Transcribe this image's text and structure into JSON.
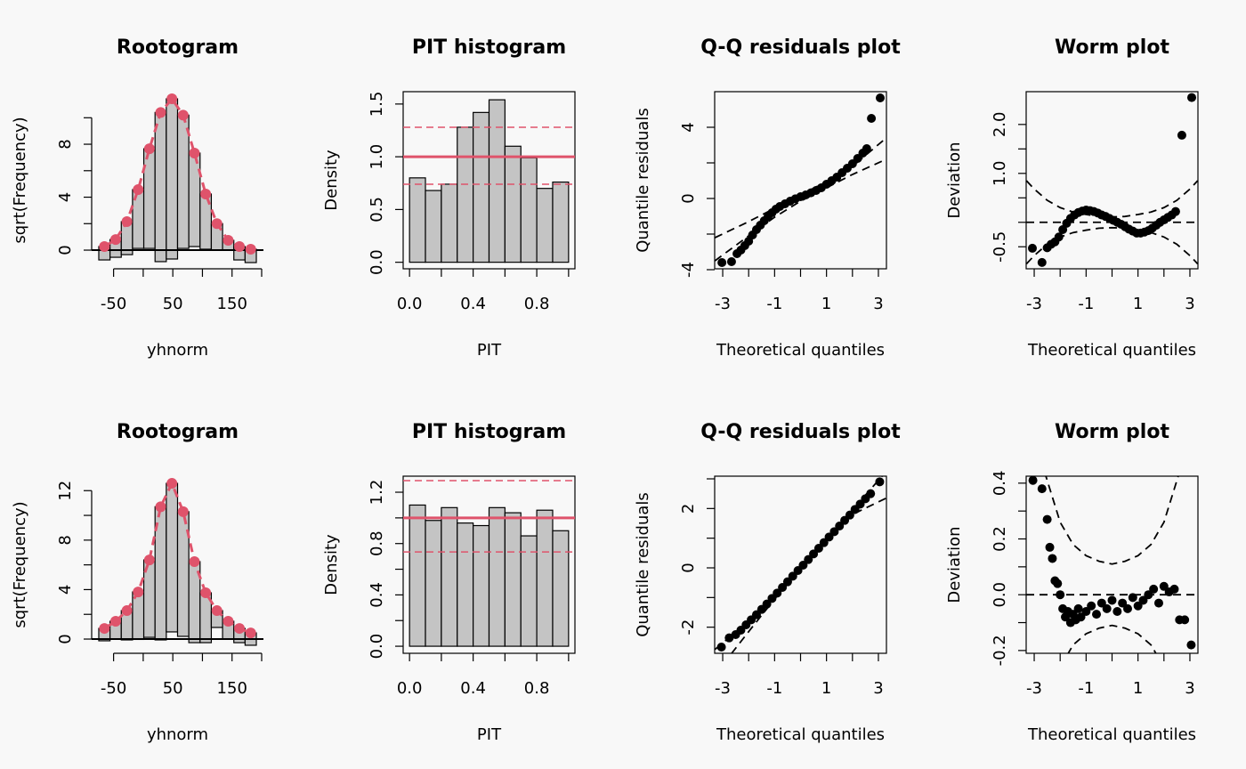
{
  "chart_data": [
    {
      "type": "rootogram",
      "title": "Rootogram",
      "xlabel": "yhnorm",
      "ylabel": "sqrt(Frequency)",
      "xlim": [
        -87,
        203
      ],
      "ylim": [
        -1.41,
        11.97
      ],
      "xticks": [
        -50,
        50,
        150
      ],
      "xticks_unlabeled": [
        0,
        100,
        200
      ],
      "yticks": [
        0,
        4,
        8
      ],
      "yticks_unlabeled": [
        2,
        6,
        10
      ],
      "bins": [
        -75,
        -56,
        -37,
        -18,
        1,
        20,
        39,
        58,
        77,
        96,
        115,
        134,
        153,
        172,
        191
      ],
      "expected": [
        0.27,
        0.8,
        2.15,
        4.57,
        7.66,
        10.4,
        11.43,
        10.2,
        7.33,
        4.24,
        2.0,
        0.74,
        0.27,
        0.07
      ],
      "observed": [
        1.01,
        1.34,
        2.49,
        4.44,
        7.53,
        11.27,
        12.1,
        10.07,
        7.06,
        4.17,
        2.0,
        0.74,
        1.01,
        1.01
      ],
      "reference_line": 0,
      "bar_color": "#c4c4c4",
      "line_color": "#df536b"
    },
    {
      "type": "histogram",
      "title": "PIT histogram",
      "xlabel": "PIT",
      "ylabel": "Density",
      "xlim": [
        -0.04,
        1.04
      ],
      "ylim": [
        -0.062,
        1.617
      ],
      "xticks": [
        {
          "value": 0,
          "label": "0.0"
        },
        0.4,
        0.8
      ],
      "xticks_unlabeled": [
        0.2,
        0.6,
        1
      ],
      "yticks": [
        {
          "value": 0,
          "label": "0.0"
        },
        0.5,
        {
          "value": 1,
          "label": "1.0"
        },
        1.5
      ],
      "yticks_unlabeled": [],
      "bins": [
        0,
        0.1,
        0.2,
        0.3,
        0.4,
        0.5,
        0.6,
        0.7,
        0.8,
        0.9,
        1
      ],
      "values": [
        0.8,
        0.68,
        0.74,
        1.28,
        1.42,
        1.54,
        1.1,
        0.99,
        0.7,
        0.76
      ],
      "reference_line": 1,
      "ci": [
        0.74,
        1.28
      ],
      "bar_color": "#c4c4c4",
      "line_color": "#df536b"
    },
    {
      "type": "qq",
      "title": "Q-Q residuals plot",
      "xlabel": "Theoretical quantiles",
      "ylabel": "Quantile residuals",
      "xlim": [
        -3.31,
        3.31
      ],
      "ylim": [
        -3.95,
        6.0
      ],
      "xticks": [
        -3,
        -1,
        1,
        3
      ],
      "xticks_unlabeled": [
        -2,
        0,
        2
      ],
      "yticks": [
        -4,
        0,
        4
      ],
      "yticks_unlabeled": [
        -2,
        2
      ],
      "x": [
        -3.03,
        -2.66,
        -2.45,
        -2.3,
        -2.15,
        -2.0,
        -1.85,
        -1.7,
        -1.55,
        -1.4,
        -1.25,
        -1.1,
        -0.95,
        -0.8,
        -0.6,
        -0.4,
        -0.2,
        0,
        0.2,
        0.4,
        0.6,
        0.8,
        1.0,
        1.2,
        1.4,
        1.6,
        1.8,
        2.0,
        2.2,
        2.4,
        2.55,
        2.73,
        3.07
      ],
      "y": [
        -3.6,
        -3.55,
        -3.1,
        -2.9,
        -2.65,
        -2.4,
        -2.05,
        -1.75,
        -1.5,
        -1.25,
        -1.0,
        -0.8,
        -0.6,
        -0.45,
        -0.3,
        -0.15,
        -0.02,
        0.1,
        0.2,
        0.32,
        0.45,
        0.6,
        0.8,
        1.0,
        1.2,
        1.45,
        1.7,
        1.95,
        2.25,
        2.55,
        2.8,
        4.5,
        5.65
      ],
      "band_x": [
        -3.3,
        -2,
        -1,
        0,
        1,
        2,
        3.3
      ],
      "band_upper": [
        -2.2,
        -1.3,
        -0.55,
        0.2,
        0.95,
        1.8,
        3.4
      ],
      "band_lower": [
        -3.5,
        -2.1,
        -1.05,
        -0.15,
        0.6,
        1.35,
        2.2
      ],
      "point_color": "#000000"
    },
    {
      "type": "worm",
      "title": "Worm plot",
      "xlabel": "Theoretical quantiles",
      "ylabel": "Deviation",
      "xlim": [
        -3.31,
        3.31
      ],
      "ylim": [
        -0.95,
        2.67
      ],
      "xticks": [
        -3,
        -1,
        1,
        3
      ],
      "xticks_unlabeled": [
        -2,
        0,
        2
      ],
      "yticks": [
        -0.5,
        {
          "value": 1,
          "label": "1.0"
        },
        {
          "value": 2,
          "label": "2.0"
        }
      ],
      "yticks_unlabeled": [
        0,
        0.5,
        1.5
      ],
      "x": [
        -3.07,
        -2.7,
        -2.5,
        -2.35,
        -2.2,
        -2.05,
        -1.9,
        -1.75,
        -1.6,
        -1.45,
        -1.3,
        -1.15,
        -1.0,
        -0.85,
        -0.7,
        -0.55,
        -0.4,
        -0.25,
        -0.1,
        0.05,
        0.2,
        0.35,
        0.5,
        0.65,
        0.8,
        0.95,
        1.1,
        1.25,
        1.4,
        1.55,
        1.7,
        1.85,
        2.0,
        2.15,
        2.3,
        2.45,
        2.69,
        3.07
      ],
      "y": [
        -0.53,
        -0.82,
        -0.52,
        -0.45,
        -0.4,
        -0.3,
        -0.15,
        -0.02,
        0.08,
        0.15,
        0.2,
        0.23,
        0.25,
        0.24,
        0.22,
        0.19,
        0.15,
        0.12,
        0.08,
        0.04,
        0.0,
        -0.04,
        -0.09,
        -0.14,
        -0.18,
        -0.22,
        -0.22,
        -0.2,
        -0.17,
        -0.12,
        -0.06,
        0.0,
        0.05,
        0.1,
        0.15,
        0.22,
        1.78,
        2.55
      ],
      "band_x": [
        -3.3,
        -3,
        -2.5,
        -2,
        -1.5,
        -1,
        -0.5,
        0,
        0.5,
        1,
        1.5,
        2,
        2.5,
        3,
        3.3
      ],
      "band_upper": [
        0.85,
        0.68,
        0.45,
        0.3,
        0.21,
        0.16,
        0.12,
        0.11,
        0.12,
        0.16,
        0.21,
        0.3,
        0.45,
        0.68,
        0.85
      ],
      "band_lower": [
        -0.85,
        -0.68,
        -0.45,
        -0.3,
        -0.21,
        -0.16,
        -0.12,
        -0.11,
        -0.12,
        -0.16,
        -0.21,
        -0.3,
        -0.45,
        -0.68,
        -0.85
      ],
      "hline": 0,
      "point_color": "#000000"
    },
    {
      "type": "rootogram",
      "title": "Rootogram",
      "xlabel": "yhnorm",
      "ylabel": "sqrt(Frequency)",
      "xlim": [
        -87,
        203
      ],
      "ylim": [
        -1.15,
        13.17
      ],
      "xticks": [
        -50,
        50,
        150
      ],
      "xticks_unlabeled": [
        0,
        100,
        200
      ],
      "yticks": [
        0,
        4,
        8,
        12
      ],
      "yticks_unlabeled": [
        2,
        6,
        10
      ],
      "bins": [
        -75,
        -56,
        -37,
        -18,
        1,
        20,
        39,
        58,
        77,
        96,
        115,
        134,
        153,
        172,
        191
      ],
      "expected": [
        0.86,
        1.44,
        2.3,
        3.81,
        6.4,
        10.7,
        12.59,
        10.3,
        6.26,
        3.74,
        2.3,
        1.44,
        0.86,
        0.5
      ],
      "observed": [
        1.0,
        1.44,
        2.37,
        3.84,
        6.26,
        10.77,
        12.01,
        10.08,
        6.55,
        4.03,
        1.36,
        1.44,
        1.15,
        1.0
      ],
      "reference_line": 0,
      "bar_color": "#c4c4c4",
      "line_color": "#df536b"
    },
    {
      "type": "histogram",
      "title": "PIT histogram",
      "xlabel": "PIT",
      "ylabel": "Density",
      "xlim": [
        -0.04,
        1.04
      ],
      "ylim": [
        -0.055,
        1.325
      ],
      "xticks": [
        {
          "value": 0,
          "label": "0.0"
        },
        0.4,
        0.8
      ],
      "xticks_unlabeled": [
        0.2,
        0.6,
        1
      ],
      "yticks": [
        {
          "value": 0,
          "label": "0.0"
        },
        0.4,
        0.8,
        1.2
      ],
      "yticks_unlabeled": [
        0.2,
        0.6,
        1
      ],
      "bins": [
        0,
        0.1,
        0.2,
        0.3,
        0.4,
        0.5,
        0.6,
        0.7,
        0.8,
        0.9,
        1
      ],
      "values": [
        1.1,
        0.98,
        1.08,
        0.96,
        0.94,
        1.08,
        1.04,
        0.86,
        1.06,
        0.9
      ],
      "reference_line": 1,
      "ci": [
        0.735,
        1.29
      ],
      "bar_color": "#c4c4c4",
      "line_color": "#df536b"
    },
    {
      "type": "qq",
      "title": "Q-Q residuals plot",
      "xlabel": "Theoretical quantiles",
      "ylabel": "Quantile residuals",
      "xlim": [
        -3.31,
        3.31
      ],
      "ylim": [
        -2.88,
        3.09
      ],
      "xticks": [
        -3,
        -1,
        1,
        3
      ],
      "xticks_unlabeled": [
        -2,
        0,
        2
      ],
      "yticks": [
        -2,
        0,
        2
      ],
      "yticks_unlabeled": [
        -1,
        1,
        3
      ],
      "x": [
        -3.05,
        -2.75,
        -2.5,
        -2.3,
        -2.1,
        -1.9,
        -1.7,
        -1.5,
        -1.3,
        -1.1,
        -0.9,
        -0.7,
        -0.5,
        -0.3,
        -0.1,
        0.1,
        0.3,
        0.5,
        0.7,
        0.9,
        1.1,
        1.3,
        1.5,
        1.7,
        1.9,
        2.1,
        2.3,
        2.5,
        2.7,
        3.05
      ],
      "y": [
        -2.67,
        -2.36,
        -2.25,
        -2.1,
        -1.92,
        -1.75,
        -1.58,
        -1.4,
        -1.22,
        -1.03,
        -0.85,
        -0.66,
        -0.47,
        -0.28,
        -0.09,
        0.09,
        0.28,
        0.47,
        0.66,
        0.85,
        1.04,
        1.22,
        1.41,
        1.6,
        1.78,
        1.97,
        2.15,
        2.33,
        2.5,
        2.9
      ],
      "band_x": [
        -3.3,
        -2,
        -1,
        0,
        1,
        2,
        3.3
      ],
      "band_upper": [
        -2.75,
        -1.8,
        -0.9,
        0.05,
        1.0,
        1.95,
        3.25
      ],
      "band_lower": [
        -3.6,
        -2.15,
        -1.05,
        -0.05,
        0.9,
        1.8,
        2.35
      ],
      "point_color": "#000000"
    },
    {
      "type": "worm",
      "title": "Worm plot",
      "xlabel": "Theoretical quantiles",
      "ylabel": "Deviation",
      "xlim": [
        -3.31,
        3.31
      ],
      "ylim": [
        -0.21,
        0.425
      ],
      "xticks": [
        -3,
        -1,
        1,
        3
      ],
      "xticks_unlabeled": [
        -2,
        0,
        2
      ],
      "yticks": [
        -0.2,
        {
          "value": 0,
          "label": "0.0"
        },
        0.2,
        0.4
      ],
      "yticks_unlabeled": [
        -0.1,
        0.1,
        0.3
      ],
      "x": [
        -3.05,
        -2.7,
        -2.5,
        -2.4,
        -2.3,
        -2.2,
        -2.1,
        -2.0,
        -1.9,
        -1.8,
        -1.7,
        -1.6,
        -1.5,
        -1.4,
        -1.3,
        -1.2,
        -1.0,
        -0.8,
        -0.6,
        -0.4,
        -0.2,
        0,
        0.2,
        0.4,
        0.6,
        0.8,
        1.0,
        1.2,
        1.4,
        1.6,
        1.8,
        2.0,
        2.2,
        2.4,
        2.6,
        2.8,
        3.05
      ],
      "y": [
        0.41,
        0.38,
        0.27,
        0.17,
        0.13,
        0.05,
        0.04,
        0.0,
        -0.05,
        -0.08,
        -0.06,
        -0.1,
        -0.07,
        -0.09,
        -0.05,
        -0.08,
        -0.06,
        -0.04,
        -0.07,
        -0.03,
        -0.05,
        -0.02,
        -0.06,
        -0.03,
        -0.05,
        -0.01,
        -0.04,
        -0.02,
        0.0,
        0.02,
        -0.03,
        0.03,
        0.01,
        0.02,
        -0.09,
        -0.09,
        -0.18
      ],
      "band_x": [
        -2.6,
        -2,
        -1.5,
        -1,
        -0.5,
        0,
        0.5,
        1,
        1.5,
        2,
        2.6
      ],
      "band_upper": [
        0.44,
        0.26,
        0.18,
        0.14,
        0.12,
        0.11,
        0.12,
        0.14,
        0.18,
        0.26,
        0.44
      ],
      "band_lower": [
        -0.44,
        -0.26,
        -0.18,
        -0.14,
        -0.12,
        -0.11,
        -0.12,
        -0.14,
        -0.18,
        -0.26,
        -0.44
      ],
      "hline": 0,
      "point_color": "#000000"
    }
  ]
}
